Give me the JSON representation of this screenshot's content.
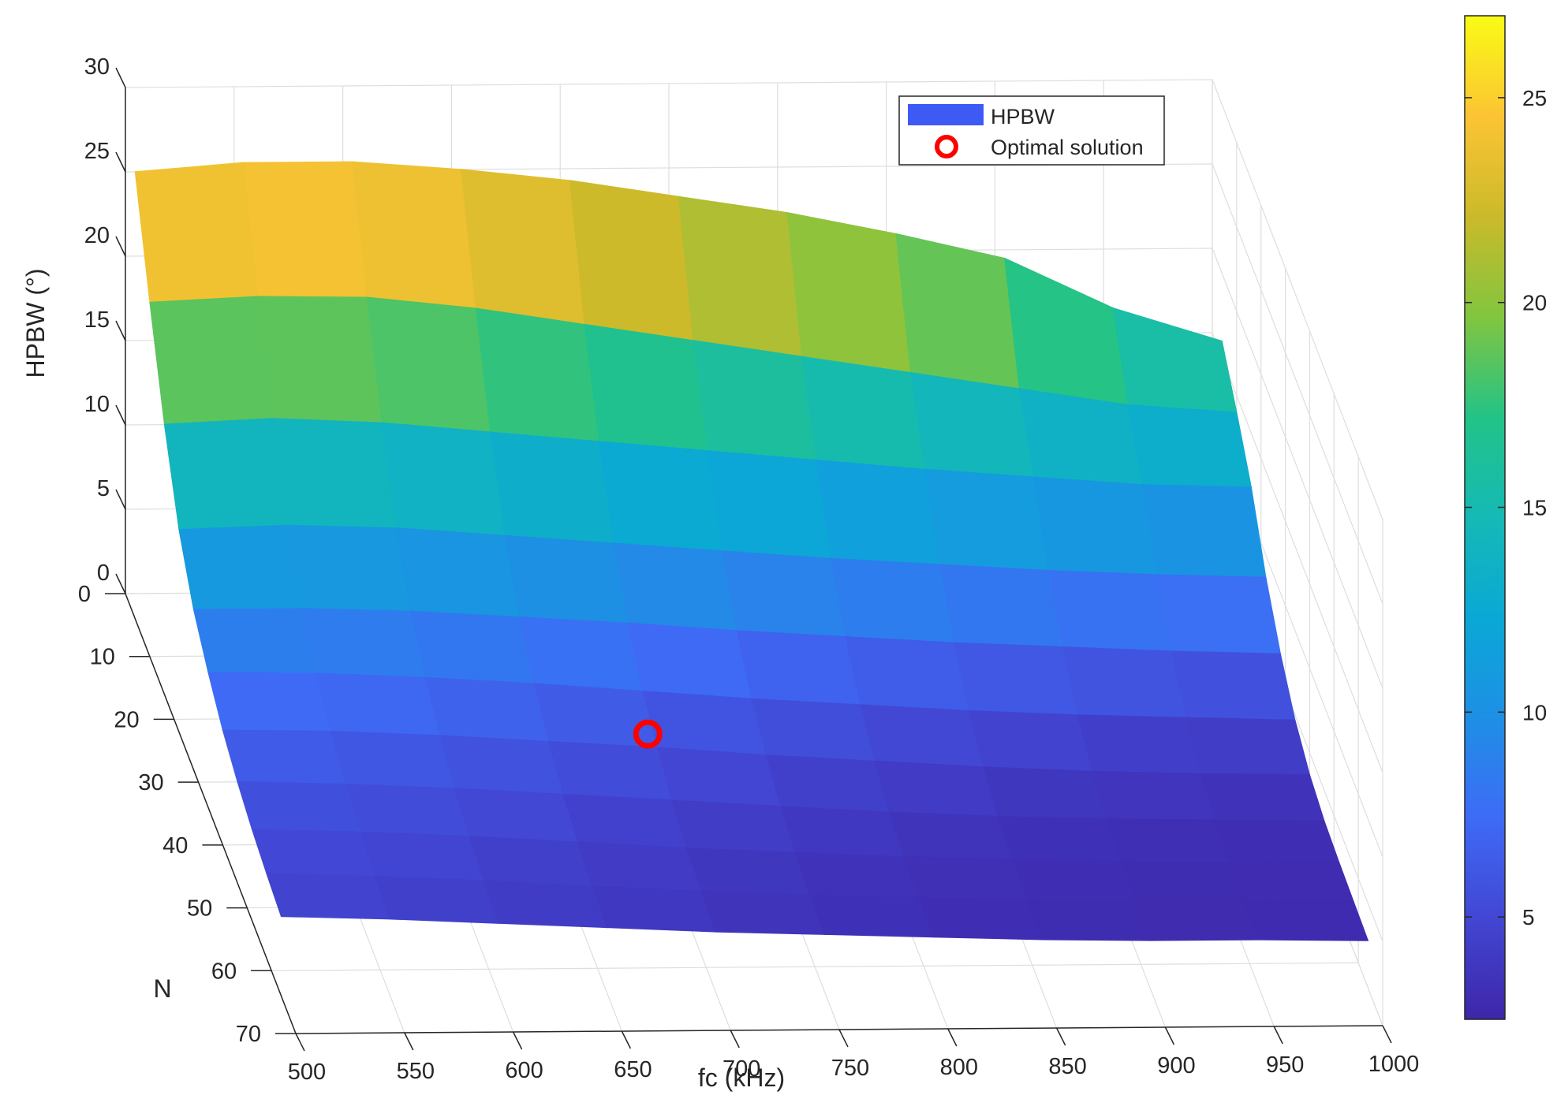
{
  "chart_data": {
    "type": "surface",
    "xlabel": "fc (kHz)",
    "ylabel": "N",
    "zlabel": "HPBW (°)",
    "x_ticks": [
      "500",
      "550",
      "600",
      "650",
      "700",
      "750",
      "800",
      "850",
      "900",
      "950",
      "1000"
    ],
    "y_ticks": [
      "0",
      "10",
      "20",
      "30",
      "40",
      "50",
      "60",
      "70"
    ],
    "z_ticks": [
      "0",
      "5",
      "10",
      "15",
      "20",
      "25",
      "30"
    ],
    "xlim": [
      500,
      1000
    ],
    "ylim": [
      0,
      70
    ],
    "zlim": [
      0,
      30
    ],
    "x": [
      500,
      550,
      600,
      650,
      700,
      750,
      800,
      850,
      900,
      950,
      1000
    ],
    "y": [
      4,
      10,
      16,
      22,
      28,
      34,
      40,
      46,
      52,
      58,
      64
    ],
    "z": [
      [
        26.5,
        27.0,
        27.0,
        26.5,
        25.8,
        24.8,
        23.8,
        22.5,
        21.0,
        18.0,
        16.0
      ],
      [
        21.0,
        21.3,
        21.2,
        20.5,
        19.5,
        18.5,
        17.5,
        16.5,
        15.5,
        14.5,
        14.0
      ],
      [
        16.0,
        16.3,
        16.0,
        15.4,
        14.8,
        14.2,
        13.6,
        13.0,
        12.5,
        12.0,
        11.8
      ],
      [
        12.0,
        12.2,
        12.0,
        11.5,
        11.0,
        10.5,
        10.0,
        9.6,
        9.2,
        8.9,
        8.7
      ],
      [
        9.5,
        9.5,
        9.3,
        8.9,
        8.5,
        8.0,
        7.6,
        7.2,
        6.9,
        6.6,
        6.4
      ],
      [
        8.0,
        7.9,
        7.6,
        7.2,
        6.7,
        6.2,
        5.8,
        5.4,
        5.1,
        4.9,
        4.7
      ],
      [
        6.8,
        6.7,
        6.4,
        6.0,
        5.6,
        5.1,
        4.7,
        4.3,
        4.0,
        3.8,
        3.7
      ],
      [
        6.0,
        5.8,
        5.5,
        5.1,
        4.7,
        4.3,
        3.9,
        3.6,
        3.4,
        3.3,
        3.2
      ],
      [
        5.4,
        5.2,
        4.9,
        4.5,
        4.1,
        3.8,
        3.5,
        3.3,
        3.1,
        3.0,
        3.0
      ],
      [
        5.0,
        4.8,
        4.5,
        4.1,
        3.8,
        3.5,
        3.3,
        3.1,
        3.0,
        2.9,
        2.9
      ],
      [
        4.7,
        4.5,
        4.2,
        3.9,
        3.6,
        3.4,
        3.2,
        3.0,
        2.9,
        2.9,
        2.8
      ]
    ],
    "highlight_point": {
      "x": 700,
      "y": 36,
      "z": 4.9
    },
    "legend": {
      "position": "top-right",
      "entries": [
        {
          "label": "HPBW",
          "type": "surface",
          "color": "#3d5af5"
        },
        {
          "label": "Optimal solution",
          "type": "marker-circle",
          "color": "#ff0000"
        }
      ]
    },
    "colorbar": {
      "colormap": "parula",
      "range": [
        2.5,
        27
      ],
      "ticks": [
        "5",
        "10",
        "15",
        "20",
        "25"
      ],
      "tick_values": [
        5,
        10,
        15,
        20,
        25
      ]
    },
    "grid": true
  }
}
